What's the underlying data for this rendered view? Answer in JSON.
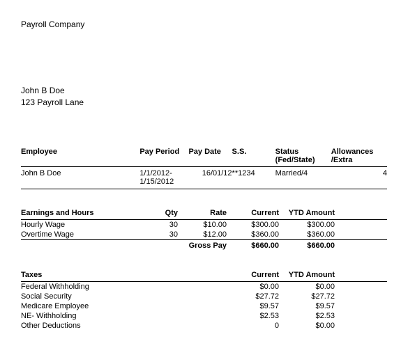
{
  "company": "Payroll Company",
  "recipient": {
    "name": "John B Doe",
    "address": "123 Payroll Lane"
  },
  "employee_section": {
    "headers": {
      "employee": "Employee",
      "pay_period": "Pay Period",
      "pay_date": "Pay Date",
      "ss": "S.S.",
      "status": "Status (Fed/State)",
      "allowances": "Allowances /Extra"
    },
    "row": {
      "employee": "John B Doe",
      "pay_period": "1/1/2012-1/15/2012",
      "pay_date": "16/01/12",
      "ss": "**1234",
      "status": "Married/4",
      "allowances": "4"
    }
  },
  "earnings_section": {
    "headers": {
      "title": "Earnings and Hours",
      "qty": "Qty",
      "rate": "Rate",
      "current": "Current",
      "ytd": "YTD Amount"
    },
    "rows": [
      {
        "label": "Hourly Wage",
        "qty": "30",
        "rate": "$10.00",
        "current": "$300.00",
        "ytd": "$300.00"
      },
      {
        "label": "Overtime Wage",
        "qty": "30",
        "rate": "$12.00",
        "current": "$360.00",
        "ytd": "$360.00"
      }
    ],
    "gross": {
      "label": "Gross Pay",
      "current": "$660.00",
      "ytd": "$660.00"
    }
  },
  "taxes_section": {
    "headers": {
      "title": "Taxes",
      "current": "Current",
      "ytd": "YTD Amount"
    },
    "rows": [
      {
        "label": "Federal Withholding",
        "current": "$0.00",
        "ytd": "$0.00"
      },
      {
        "label": "Social Security",
        "current": "$27.72",
        "ytd": "$27.72"
      },
      {
        "label": "Medicare Employee",
        "current": "$9.57",
        "ytd": "$9.57"
      },
      {
        "label": "NE- Withholding",
        "current": "$2.53",
        "ytd": "$2.53"
      },
      {
        "label": "Other Deductions",
        "current": "0",
        "ytd": "$0.00"
      }
    ]
  },
  "styling": {
    "font_family": "Arial",
    "font_size_pt": 8,
    "text_color": "#000000",
    "background_color": "#ffffff",
    "rule_color": "#000000"
  }
}
